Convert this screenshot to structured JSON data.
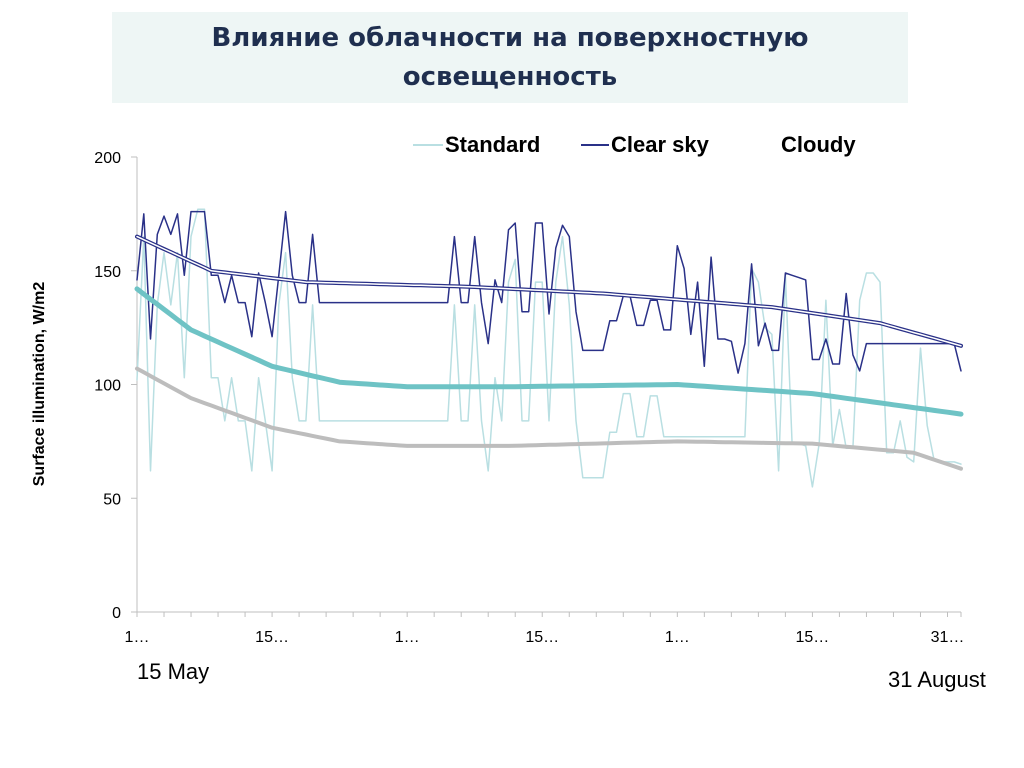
{
  "title": "Влияние облачности на поверхностную освещенность",
  "date_start": "15 May",
  "date_end": "31 August",
  "chart_data": {
    "type": "line",
    "ylabel": "Surface illumination, W/m2",
    "xlabel": "",
    "ylim": [
      0,
      200
    ],
    "yticks": [
      0,
      50,
      100,
      150,
      200
    ],
    "x_tick_labels": [
      "1…",
      "15…",
      "1…",
      "15…",
      "1…",
      "15…",
      "31…"
    ],
    "grid": false,
    "legend_position": "top-right",
    "legend": [
      {
        "name": "Standard",
        "color": "#b9dfe2"
      },
      {
        "name": "Clear sky",
        "color": "#2a3188"
      },
      {
        "name": "Cloudy",
        "color": ""
      }
    ],
    "n_points": 123,
    "series": [
      {
        "name": "Standard",
        "color": "#b9dfe2",
        "knots": [
          [
            0,
            102
          ],
          [
            1,
            165
          ],
          [
            2,
            62
          ],
          [
            3,
            135
          ],
          [
            4,
            158
          ],
          [
            5,
            135
          ],
          [
            6,
            158
          ],
          [
            7,
            103
          ],
          [
            8,
            165
          ],
          [
            9,
            177
          ],
          [
            10,
            177
          ],
          [
            11,
            103
          ],
          [
            12,
            103
          ],
          [
            13,
            84
          ],
          [
            14,
            103
          ],
          [
            15,
            84
          ],
          [
            16,
            84
          ],
          [
            17,
            62
          ],
          [
            18,
            103
          ],
          [
            19,
            84
          ],
          [
            20,
            62
          ],
          [
            21,
            135
          ],
          [
            22,
            158
          ],
          [
            23,
            103
          ],
          [
            24,
            84
          ],
          [
            25,
            84
          ],
          [
            26,
            135
          ],
          [
            27,
            84
          ],
          [
            28,
            84
          ],
          [
            29,
            84
          ],
          [
            30,
            84
          ],
          [
            31,
            84
          ],
          [
            32,
            84
          ],
          [
            33,
            84
          ],
          [
            34,
            84
          ],
          [
            35,
            84
          ],
          [
            36,
            84
          ],
          [
            37,
            84
          ],
          [
            38,
            84
          ],
          [
            39,
            84
          ],
          [
            40,
            84
          ],
          [
            41,
            84
          ],
          [
            42,
            84
          ],
          [
            43,
            84
          ],
          [
            44,
            84
          ],
          [
            45,
            84
          ],
          [
            46,
            84
          ],
          [
            47,
            135
          ],
          [
            48,
            84
          ],
          [
            49,
            84
          ],
          [
            50,
            135
          ],
          [
            51,
            84
          ],
          [
            52,
            62
          ],
          [
            53,
            103
          ],
          [
            54,
            84
          ],
          [
            55,
            145
          ],
          [
            56,
            155
          ],
          [
            57,
            84
          ],
          [
            58,
            84
          ],
          [
            59,
            145
          ],
          [
            60,
            145
          ],
          [
            61,
            84
          ],
          [
            62,
            145
          ],
          [
            63,
            165
          ],
          [
            64,
            135
          ],
          [
            65,
            84
          ],
          [
            66,
            59
          ],
          [
            67,
            59
          ],
          [
            68,
            59
          ],
          [
            69,
            59
          ],
          [
            70,
            79
          ],
          [
            71,
            79
          ],
          [
            72,
            96
          ],
          [
            73,
            96
          ],
          [
            74,
            77
          ],
          [
            75,
            77
          ],
          [
            76,
            95
          ],
          [
            77,
            95
          ],
          [
            78,
            77
          ],
          [
            79,
            77
          ],
          [
            80,
            77
          ],
          [
            81,
            77
          ],
          [
            82,
            77
          ],
          [
            83,
            77
          ],
          [
            84,
            77
          ],
          [
            85,
            77
          ],
          [
            86,
            77
          ],
          [
            87,
            77
          ],
          [
            88,
            77
          ],
          [
            89,
            77
          ],
          [
            90,
            77
          ],
          [
            91,
            151
          ],
          [
            92,
            145
          ],
          [
            93,
            125
          ],
          [
            94,
            122
          ],
          [
            95,
            62
          ],
          [
            96,
            148
          ],
          [
            97,
            74
          ],
          [
            98,
            74
          ],
          [
            99,
            73
          ],
          [
            100,
            55
          ],
          [
            101,
            74
          ],
          [
            102,
            137
          ],
          [
            103,
            73
          ],
          [
            104,
            89
          ],
          [
            105,
            72
          ],
          [
            106,
            72
          ],
          [
            107,
            137
          ],
          [
            108,
            149
          ],
          [
            109,
            149
          ],
          [
            110,
            145
          ],
          [
            111,
            70
          ],
          [
            112,
            70
          ],
          [
            113,
            84
          ],
          [
            114,
            68
          ],
          [
            115,
            66
          ],
          [
            116,
            116
          ],
          [
            117,
            82
          ],
          [
            118,
            67
          ],
          [
            119,
            66
          ],
          [
            120,
            66
          ],
          [
            121,
            66
          ],
          [
            122,
            65
          ]
        ]
      },
      {
        "name": "Clear sky",
        "color": "#2a3188",
        "knots": [
          [
            0,
            146
          ],
          [
            1,
            175
          ],
          [
            2,
            120
          ],
          [
            3,
            166
          ],
          [
            4,
            174
          ],
          [
            5,
            166
          ],
          [
            6,
            175
          ],
          [
            7,
            148
          ],
          [
            8,
            176
          ],
          [
            9,
            176
          ],
          [
            10,
            176
          ],
          [
            11,
            148
          ],
          [
            12,
            148
          ],
          [
            13,
            136
          ],
          [
            14,
            148
          ],
          [
            15,
            136
          ],
          [
            16,
            136
          ],
          [
            17,
            121
          ],
          [
            18,
            149
          ],
          [
            19,
            136
          ],
          [
            20,
            121
          ],
          [
            21,
            148
          ],
          [
            22,
            176
          ],
          [
            23,
            148
          ],
          [
            24,
            136
          ],
          [
            25,
            136
          ],
          [
            26,
            166
          ],
          [
            27,
            136
          ],
          [
            28,
            136
          ],
          [
            29,
            136
          ],
          [
            30,
            136
          ],
          [
            31,
            136
          ],
          [
            32,
            136
          ],
          [
            33,
            136
          ],
          [
            34,
            136
          ],
          [
            35,
            136
          ],
          [
            36,
            136
          ],
          [
            37,
            136
          ],
          [
            38,
            136
          ],
          [
            39,
            136
          ],
          [
            40,
            136
          ],
          [
            41,
            136
          ],
          [
            42,
            136
          ],
          [
            43,
            136
          ],
          [
            44,
            136
          ],
          [
            45,
            136
          ],
          [
            46,
            136
          ],
          [
            47,
            165
          ],
          [
            48,
            136
          ],
          [
            49,
            136
          ],
          [
            50,
            165
          ],
          [
            51,
            136
          ],
          [
            52,
            118
          ],
          [
            53,
            146
          ],
          [
            54,
            136
          ],
          [
            55,
            168
          ],
          [
            56,
            171
          ],
          [
            57,
            132
          ],
          [
            58,
            132
          ],
          [
            59,
            171
          ],
          [
            60,
            171
          ],
          [
            61,
            131
          ],
          [
            62,
            160
          ],
          [
            63,
            170
          ],
          [
            64,
            165
          ],
          [
            65,
            132
          ],
          [
            66,
            115
          ],
          [
            67,
            115
          ],
          [
            68,
            115
          ],
          [
            69,
            115
          ],
          [
            70,
            128
          ],
          [
            71,
            128
          ],
          [
            72,
            139
          ],
          [
            73,
            139
          ],
          [
            74,
            126
          ],
          [
            75,
            126
          ],
          [
            76,
            137
          ],
          [
            77,
            137
          ],
          [
            78,
            124
          ],
          [
            79,
            124
          ],
          [
            80,
            161
          ],
          [
            81,
            151
          ],
          [
            82,
            122
          ],
          [
            83,
            145
          ],
          [
            84,
            108
          ],
          [
            85,
            156
          ],
          [
            86,
            120
          ],
          [
            87,
            120
          ],
          [
            88,
            119
          ],
          [
            89,
            105
          ],
          [
            90,
            118
          ],
          [
            91,
            153
          ],
          [
            92,
            117
          ],
          [
            93,
            127
          ],
          [
            94,
            115
          ],
          [
            95,
            115
          ],
          [
            96,
            149
          ],
          [
            97,
            148
          ],
          [
            98,
            147
          ],
          [
            99,
            146
          ],
          [
            100,
            111
          ],
          [
            101,
            111
          ],
          [
            102,
            120
          ],
          [
            103,
            109
          ],
          [
            104,
            109
          ],
          [
            105,
            140
          ],
          [
            106,
            113
          ],
          [
            107,
            106
          ],
          [
            108,
            118
          ],
          [
            109,
            118
          ],
          [
            110,
            118
          ],
          [
            111,
            118
          ],
          [
            112,
            118
          ],
          [
            113,
            118
          ],
          [
            114,
            118
          ],
          [
            115,
            118
          ],
          [
            116,
            118
          ],
          [
            117,
            118
          ],
          [
            118,
            118
          ],
          [
            119,
            118
          ],
          [
            120,
            118
          ],
          [
            121,
            118
          ],
          [
            122,
            106
          ]
        ]
      },
      {
        "name": "Clear sky trend",
        "color": "#2a3188",
        "knots": [
          [
            0,
            165
          ],
          [
            11,
            150
          ],
          [
            25,
            145
          ],
          [
            49,
            143
          ],
          [
            69,
            140
          ],
          [
            94,
            134
          ],
          [
            110,
            127
          ],
          [
            122,
            117
          ]
        ]
      },
      {
        "name": "Clear sky trend (inner)",
        "color": "#ffffff",
        "knots": [
          [
            0,
            165
          ],
          [
            11,
            150
          ],
          [
            25,
            145
          ],
          [
            49,
            143
          ],
          [
            69,
            140
          ],
          [
            94,
            134
          ],
          [
            110,
            127
          ],
          [
            122,
            117
          ]
        ]
      },
      {
        "name": "Standard trend",
        "color": "#6ec3c5",
        "knots": [
          [
            0,
            142
          ],
          [
            8,
            124
          ],
          [
            20,
            108
          ],
          [
            30,
            101
          ],
          [
            40,
            99
          ],
          [
            55,
            99
          ],
          [
            80,
            100
          ],
          [
            100,
            96
          ],
          [
            122,
            87
          ]
        ]
      },
      {
        "name": "Cloudy trend",
        "color": "#bdbdbd",
        "knots": [
          [
            0,
            107
          ],
          [
            8,
            94
          ],
          [
            20,
            81
          ],
          [
            30,
            75
          ],
          [
            40,
            73
          ],
          [
            55,
            73
          ],
          [
            80,
            75
          ],
          [
            100,
            74
          ],
          [
            115,
            70
          ],
          [
            122,
            63
          ]
        ]
      }
    ]
  }
}
